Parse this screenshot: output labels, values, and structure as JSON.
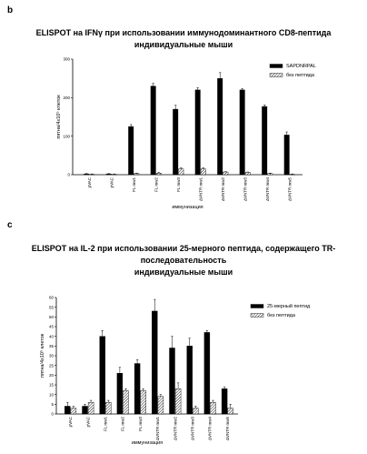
{
  "figure": {
    "panel_b": {
      "letter": "b",
      "title_line1": "ELISPOT на IFNγ при использовании иммунодоминантного CD8-пептида",
      "title_line2": "индивидуальные мыши"
    },
    "panel_c": {
      "letter": "c",
      "title_line1": "ELISPOT на IL-2 при использовании 25-мерного пептида, содержащего TR-",
      "title_line2": "последовательность",
      "title_line3": "индивидуальные мыши"
    }
  },
  "chart_data": [
    {
      "type": "bar",
      "panel": "b",
      "categories": [
        "pVAC",
        "pVAC",
        "FL mw1",
        "FL mw2",
        "FL mw3",
        "ΔVNTR mw1",
        "ΔVNTR mw2",
        "ΔVNTR mw3",
        "ΔVNTR mw4",
        "ΔVNTR mw5"
      ],
      "xlabel": "иммунизация",
      "ylabel": "пятна/4x10⁵ клеток",
      "ylim": [
        0,
        300
      ],
      "yticks": [
        0,
        100,
        200,
        300
      ],
      "series": [
        {
          "name": "SAPDNRPAL",
          "values": [
            2,
            2,
            125,
            230,
            170,
            220,
            250,
            220,
            177,
            103
          ],
          "errors": [
            1,
            1,
            5,
            7,
            10,
            6,
            15,
            4,
            4,
            8
          ]
        },
        {
          "name": "без пептида",
          "values": [
            1,
            1,
            3,
            4,
            15,
            15,
            7,
            6,
            3,
            1
          ],
          "errors": [
            1,
            1,
            1,
            2,
            3,
            3,
            1,
            1,
            1,
            1
          ]
        }
      ],
      "legend_position": "top-right",
      "colors": {
        "series1": "#000000",
        "series2": "hatched"
      }
    },
    {
      "type": "bar",
      "panel": "c",
      "categories": [
        "pVAC",
        "pVAC",
        "FL mw1",
        "FL mw2",
        "FL mw3",
        "ΔVNTR mw1",
        "ΔVNTR mw2",
        "ΔVNTR mw3",
        "ΔVNTR mw4",
        "ΔVNTR mw5"
      ],
      "xlabel": "иммунизация",
      "ylabel": "пятна/4x10⁵ клеток",
      "ylim": [
        0,
        60
      ],
      "yticks": [
        0,
        5,
        10,
        15,
        20,
        25,
        30,
        35,
        40,
        45,
        50,
        55,
        60
      ],
      "series": [
        {
          "name": "25-мерный пептид",
          "values": [
            4,
            4,
            40,
            21,
            26,
            53,
            34,
            35,
            42,
            13
          ],
          "errors": [
            2,
            1,
            3,
            3,
            2,
            6,
            6,
            4,
            1,
            1
          ]
        },
        {
          "name": "без пептида",
          "values": [
            3,
            6,
            6,
            12,
            12,
            9,
            13,
            3,
            6,
            3
          ],
          "errors": [
            1,
            1,
            1,
            1,
            1,
            1,
            3,
            1,
            1,
            2
          ]
        }
      ],
      "legend_position": "top-right",
      "colors": {
        "series1": "#000000",
        "series2": "hatched"
      }
    }
  ]
}
